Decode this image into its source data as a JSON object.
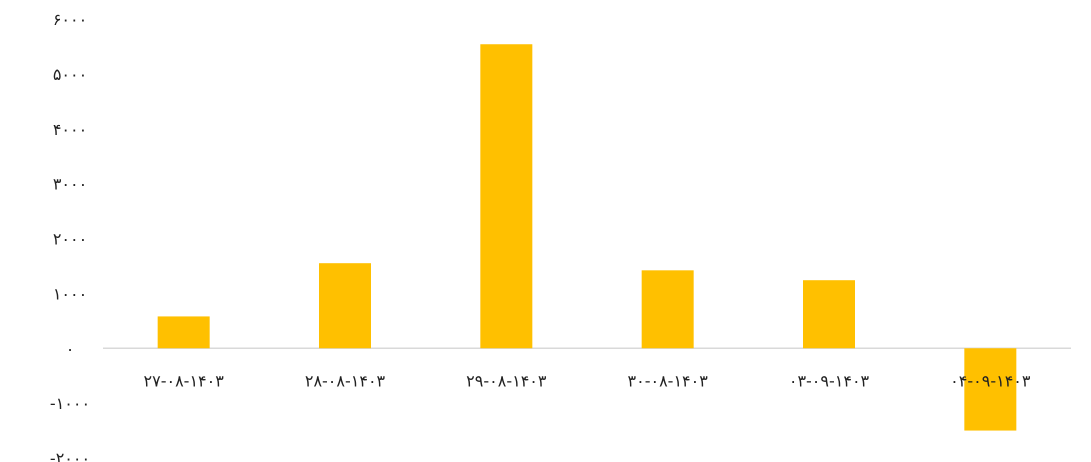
{
  "chart_data": {
    "type": "bar",
    "title": "",
    "xlabel": "",
    "ylabel": "",
    "categories": [
      "۲۷-۰۸-۱۴۰۳",
      "۲۸-۰۸-۱۴۰۳",
      "۲۹-۰۸-۱۴۰۳",
      "۳۰-۰۸-۱۴۰۳",
      "۰۳-۰۹-۱۴۰۳",
      "۰۴-۰۹-۱۴۰۳"
    ],
    "values": [
      580,
      1550,
      5540,
      1420,
      1240,
      -1500
    ],
    "ylim": [
      -2000,
      6000
    ],
    "yticks": [
      6000,
      5000,
      4000,
      3000,
      2000,
      1000,
      0,
      -1000,
      -2000
    ],
    "ytick_labels": [
      "۶۰۰۰",
      "۵۰۰۰",
      "۴۰۰۰",
      "۳۰۰۰",
      "۲۰۰۰",
      "۱۰۰۰",
      "۰",
      "-۱۰۰۰",
      "-۲۰۰۰"
    ],
    "bar_color": "#FFC000",
    "axis_color": "#D9D9D9",
    "grid": false,
    "legend": "none"
  }
}
